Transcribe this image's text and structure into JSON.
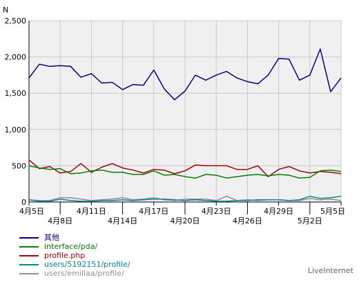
{
  "chart_data": {
    "type": "line",
    "ylabel": "N",
    "ylim": [
      0,
      2500
    ],
    "yticks": [
      "0",
      "500",
      "1,000",
      "1,500",
      "2,000",
      "2,500"
    ],
    "ytick_values": [
      0,
      500,
      1000,
      1500,
      2000,
      2500
    ],
    "grid": true,
    "x_tick_labels_upper": [
      "4月5日",
      "4月11日",
      "4月17日",
      "4月23日",
      "4月29日",
      "5月5日"
    ],
    "x_tick_labels_lower": [
      "4月8日",
      "4月14日",
      "4月20日",
      "4月26日",
      "5月2日"
    ],
    "x": [
      "4月5日",
      "4月6日",
      "4月7日",
      "4月8日",
      "4月9日",
      "4月10日",
      "4月11日",
      "4月12日",
      "4月13日",
      "4月14日",
      "4月15日",
      "4月16日",
      "4月17日",
      "4月18日",
      "4月19日",
      "4月20日",
      "4月21日",
      "4月22日",
      "4月23日",
      "4月24日",
      "4月25日",
      "4月26日",
      "4月27日",
      "4月28日",
      "4月29日",
      "4月30日",
      "5月1日",
      "5月2日",
      "5月3日",
      "5月4日",
      "5月5日"
    ],
    "series": [
      {
        "name": "其他",
        "color": "#000080",
        "values": [
          1710,
          1900,
          1870,
          1880,
          1870,
          1720,
          1770,
          1640,
          1650,
          1550,
          1620,
          1610,
          1820,
          1560,
          1410,
          1530,
          1750,
          1680,
          1750,
          1800,
          1710,
          1660,
          1630,
          1750,
          1980,
          1970,
          1680,
          1750,
          2110,
          1520,
          1710
        ]
      },
      {
        "name": "interface/pda/",
        "color": "#008000",
        "values": [
          500,
          470,
          450,
          460,
          390,
          400,
          430,
          440,
          410,
          410,
          380,
          380,
          430,
          370,
          380,
          350,
          330,
          380,
          370,
          330,
          350,
          370,
          380,
          360,
          380,
          370,
          330,
          340,
          430,
          440,
          420
        ]
      },
      {
        "name": "profile.php",
        "color": "#a00000",
        "values": [
          580,
          460,
          490,
          400,
          420,
          530,
          410,
          480,
          530,
          470,
          440,
          400,
          450,
          440,
          390,
          430,
          510,
          500,
          500,
          500,
          450,
          450,
          500,
          350,
          450,
          490,
          430,
          400,
          420,
          410,
          390
        ]
      },
      {
        "name": "users/5192151/profile/",
        "color": "#008b8b",
        "values": [
          30,
          10,
          10,
          40,
          20,
          10,
          10,
          20,
          20,
          30,
          20,
          30,
          40,
          40,
          30,
          20,
          30,
          20,
          10,
          10,
          20,
          20,
          30,
          30,
          30,
          20,
          30,
          80,
          50,
          60,
          80
        ]
      },
      {
        "name": "users/emiliaa/profile/",
        "color": "#909090",
        "values": [
          30,
          20,
          20,
          60,
          60,
          40,
          20,
          30,
          40,
          60,
          30,
          40,
          60,
          30,
          20,
          40,
          40,
          40,
          20,
          80,
          20,
          30,
          20,
          30,
          30,
          20,
          20,
          50,
          30,
          40,
          20
        ]
      }
    ]
  },
  "brand": "LiveInternet"
}
